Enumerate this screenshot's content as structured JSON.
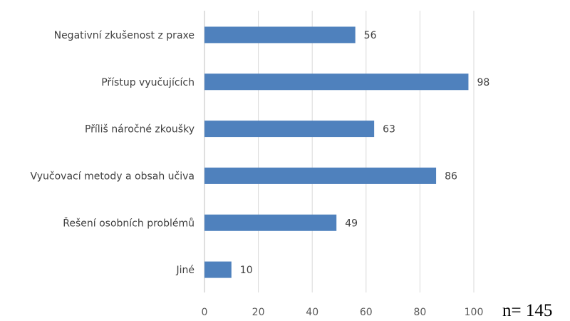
{
  "chart_data": {
    "type": "bar",
    "orientation": "horizontal",
    "categories": [
      "Negativní zkušenost z praxe",
      "Přístup vyučujících",
      "Příliš náročné zkoušky",
      "Vyučovací metody a obsah učiva",
      "Řešení osobních problémů",
      "Jiné"
    ],
    "values": [
      56,
      98,
      63,
      86,
      49,
      10
    ],
    "data_labels": true,
    "xlim": [
      0,
      100
    ],
    "x_ticks": [
      0,
      20,
      40,
      60,
      80,
      100
    ],
    "grid": "vertical",
    "legend": "none",
    "colors": {
      "bar": "#4f81bd",
      "grid": "#d9d9d9",
      "text": "#404040"
    }
  },
  "annotation": {
    "sample_size": "n= 145"
  }
}
